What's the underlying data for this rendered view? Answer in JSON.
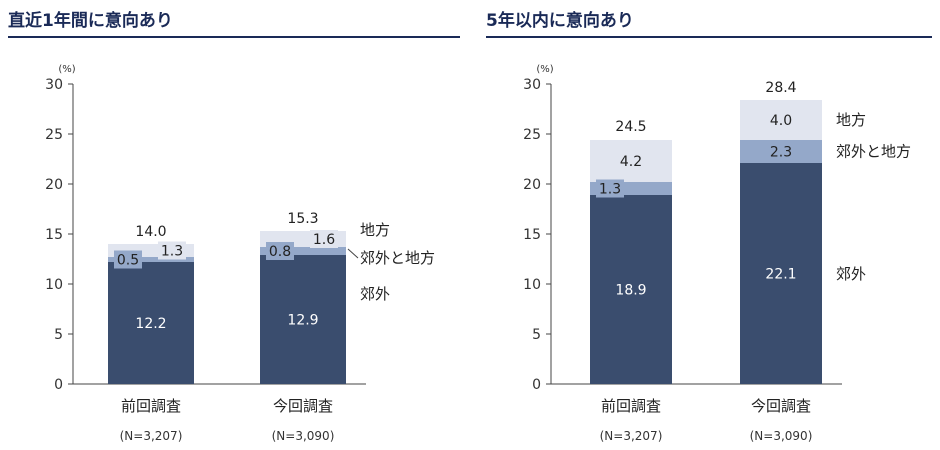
{
  "colors": {
    "suburb": "#3a4d6e",
    "suburb_local": "#94a8c9",
    "local": "#e1e5ef",
    "title": "#1a2a57"
  },
  "chart_data": [
    {
      "type": "bar",
      "title": "直近1年間に意向あり",
      "unit_label": "(%)",
      "ylim": [
        0,
        30
      ],
      "yticks": [
        0,
        5,
        10,
        15,
        20,
        25,
        30
      ],
      "categories": [
        "前回調査",
        "今回調査"
      ],
      "n_labels": [
        "(N=3,207)",
        "(N=3,090)"
      ],
      "series": [
        {
          "name": "郊外",
          "values": [
            12.2,
            12.9
          ],
          "labels": [
            "12.2",
            "12.9"
          ]
        },
        {
          "name": "郊外と地方",
          "values": [
            0.5,
            0.8
          ],
          "labels": [
            "0.5",
            "0.8"
          ]
        },
        {
          "name": "地方",
          "values": [
            1.3,
            1.6
          ],
          "labels": [
            "1.3",
            "1.6"
          ]
        }
      ],
      "totals": [
        14.0,
        15.3
      ],
      "total_labels": [
        "14.0",
        "15.3"
      ],
      "legend": [
        "地方",
        "郊外と地方",
        "郊外"
      ]
    },
    {
      "type": "bar",
      "title": "5年以内に意向あり",
      "unit_label": "(%)",
      "ylim": [
        0,
        30
      ],
      "yticks": [
        0,
        5,
        10,
        15,
        20,
        25,
        30
      ],
      "categories": [
        "前回調査",
        "今回調査"
      ],
      "n_labels": [
        "(N=3,207)",
        "(N=3,090)"
      ],
      "series": [
        {
          "name": "郊外",
          "values": [
            18.9,
            22.1
          ],
          "labels": [
            "18.9",
            "22.1"
          ]
        },
        {
          "name": "郊外と地方",
          "values": [
            1.3,
            2.3
          ],
          "labels": [
            "1.3",
            "2.3"
          ]
        },
        {
          "name": "地方",
          "values": [
            4.2,
            4.0
          ],
          "labels": [
            "4.2",
            "4.0"
          ]
        }
      ],
      "totals": [
        24.5,
        28.4
      ],
      "total_labels": [
        "24.5",
        "28.4"
      ],
      "legend": [
        "地方",
        "郊外と地方",
        "郊外"
      ]
    }
  ]
}
